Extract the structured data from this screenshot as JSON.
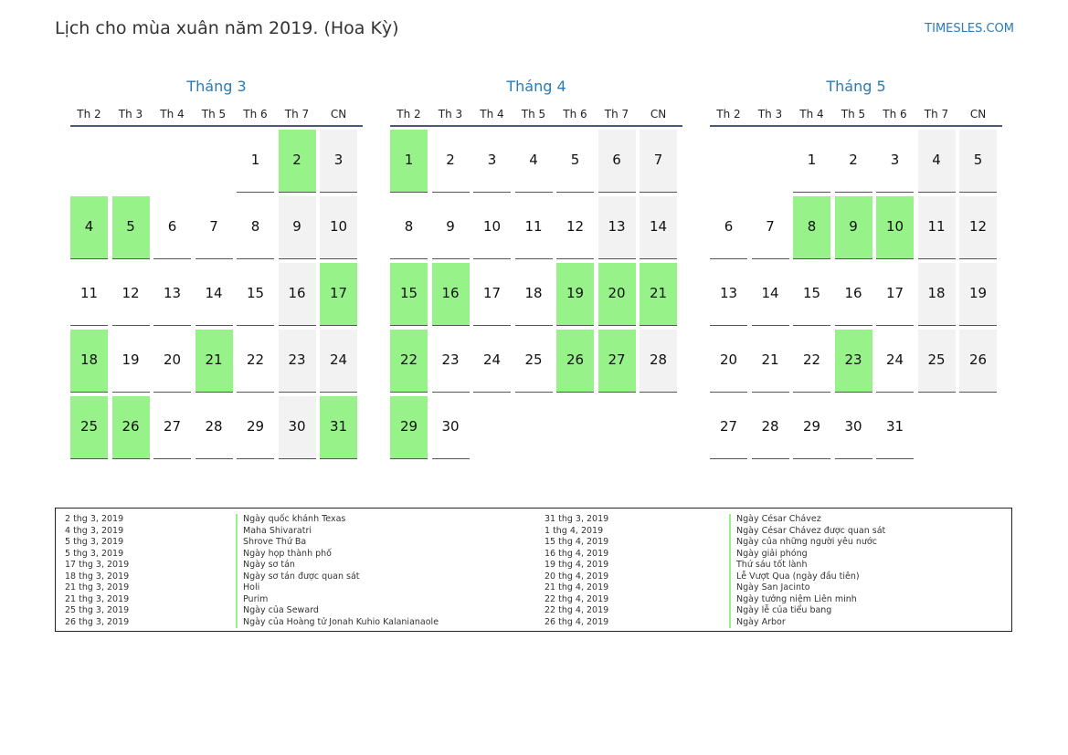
{
  "header": {
    "title": "Lịch cho mùa xuân năm 2019. (Hoa Kỳ)",
    "site": "TIMESLES.COM"
  },
  "colors": {
    "holiday": "#98f28a",
    "weekend": "#f2f2f2",
    "accent": "#2a7ab8"
  },
  "weekdays": [
    "Th 2",
    "Th 3",
    "Th 4",
    "Th 5",
    "Th 6",
    "Th 7",
    "CN"
  ],
  "months": [
    {
      "name": "Tháng 3",
      "offset": 4,
      "days": 31,
      "holidays": [
        2,
        4,
        5,
        17,
        18,
        21,
        25,
        26,
        31
      ]
    },
    {
      "name": "Tháng 4",
      "offset": 0,
      "days": 30,
      "holidays": [
        1,
        15,
        16,
        19,
        20,
        21,
        22,
        26,
        27,
        29
      ]
    },
    {
      "name": "Tháng 5",
      "offset": 2,
      "days": 31,
      "holidays": [
        8,
        9,
        10,
        23
      ]
    }
  ],
  "holiday_list": {
    "left": [
      {
        "date": "2 thg 3, 2019",
        "name": "Ngày quốc khánh Texas"
      },
      {
        "date": "4 thg 3, 2019",
        "name": "Maha Shivaratri"
      },
      {
        "date": "5 thg 3, 2019",
        "name": "Shrove Thứ Ba"
      },
      {
        "date": "5 thg 3, 2019",
        "name": "Ngày họp thành phố"
      },
      {
        "date": "17 thg 3, 2019",
        "name": "Ngày sơ tán"
      },
      {
        "date": "18 thg 3, 2019",
        "name": "Ngày sơ tán được quan sát"
      },
      {
        "date": "21 thg 3, 2019",
        "name": "Holi"
      },
      {
        "date": "21 thg 3, 2019",
        "name": "Purim"
      },
      {
        "date": "25 thg 3, 2019",
        "name": "Ngày của Seward"
      },
      {
        "date": "26 thg 3, 2019",
        "name": "Ngày của Hoàng tử Jonah Kuhio Kalanianaole"
      }
    ],
    "right": [
      {
        "date": "31 thg 3, 2019",
        "name": "Ngày César Chávez"
      },
      {
        "date": "1 thg 4, 2019",
        "name": "Ngày César Chávez được quan sát"
      },
      {
        "date": "15 thg 4, 2019",
        "name": "Ngày của những người yêu nước"
      },
      {
        "date": "16 thg 4, 2019",
        "name": "Ngày giải phóng"
      },
      {
        "date": "19 thg 4, 2019",
        "name": "Thứ sáu tốt lành"
      },
      {
        "date": "20 thg 4, 2019",
        "name": "Lễ Vượt Qua (ngày đầu tiên)"
      },
      {
        "date": "21 thg 4, 2019",
        "name": "Ngày San Jacinto"
      },
      {
        "date": "22 thg 4, 2019",
        "name": "Ngày tưởng niệm Liên minh"
      },
      {
        "date": "22 thg 4, 2019",
        "name": "Ngày lễ của tiểu bang"
      },
      {
        "date": "26 thg 4, 2019",
        "name": "Ngày Arbor"
      }
    ]
  }
}
